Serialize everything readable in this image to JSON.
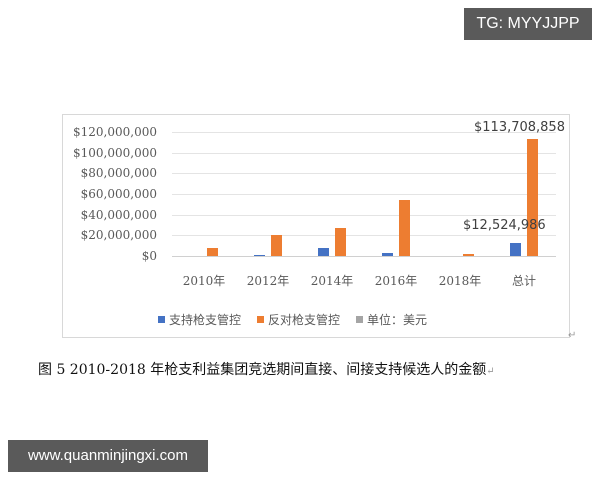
{
  "watermark_top": "TG: MYYJJPP",
  "watermark_bottom": "www.quanminjingxi.com",
  "caption": "图 5 2010-2018 年枪支利益集团竞选期间直接、间接支持候选人的金额",
  "colors": {
    "support": "#4472c4",
    "oppose": "#ed7d31",
    "unit": "#a5a5a5"
  },
  "chart_data": {
    "type": "bar",
    "title": "",
    "xlabel": "",
    "ylabel": "",
    "categories": [
      "2010年",
      "2012年",
      "2014年",
      "2016年",
      "2018年",
      "总计"
    ],
    "series": [
      {
        "name": "支持枪支管控",
        "color": "#4472c4",
        "values": [
          0,
          1000000,
          7500000,
          3000000,
          0,
          12524986
        ]
      },
      {
        "name": "反对枪支管控",
        "color": "#ed7d31",
        "values": [
          8000000,
          20000000,
          27000000,
          54000000,
          1500000,
          113708858
        ]
      },
      {
        "name": "单位：美元",
        "color": "#a5a5a5",
        "values": [
          0,
          0,
          0,
          0,
          0,
          0
        ]
      }
    ],
    "yticks": [
      "$120,000,000",
      "$100,000,000",
      "$80,000,000",
      "$60,000,000",
      "$40,000,000",
      "$20,000,000",
      "$0"
    ],
    "ylim": [
      0,
      120000000
    ],
    "grid": true,
    "legend_position": "bottom",
    "annotations": [
      "$113,708,858",
      "$12,524,986"
    ]
  },
  "legend": [
    "支持枪支管控",
    "反对枪支管控",
    "单位：美元"
  ],
  "labels": {
    "total_oppose": "$113,708,858",
    "total_support": "$12,524,986"
  }
}
